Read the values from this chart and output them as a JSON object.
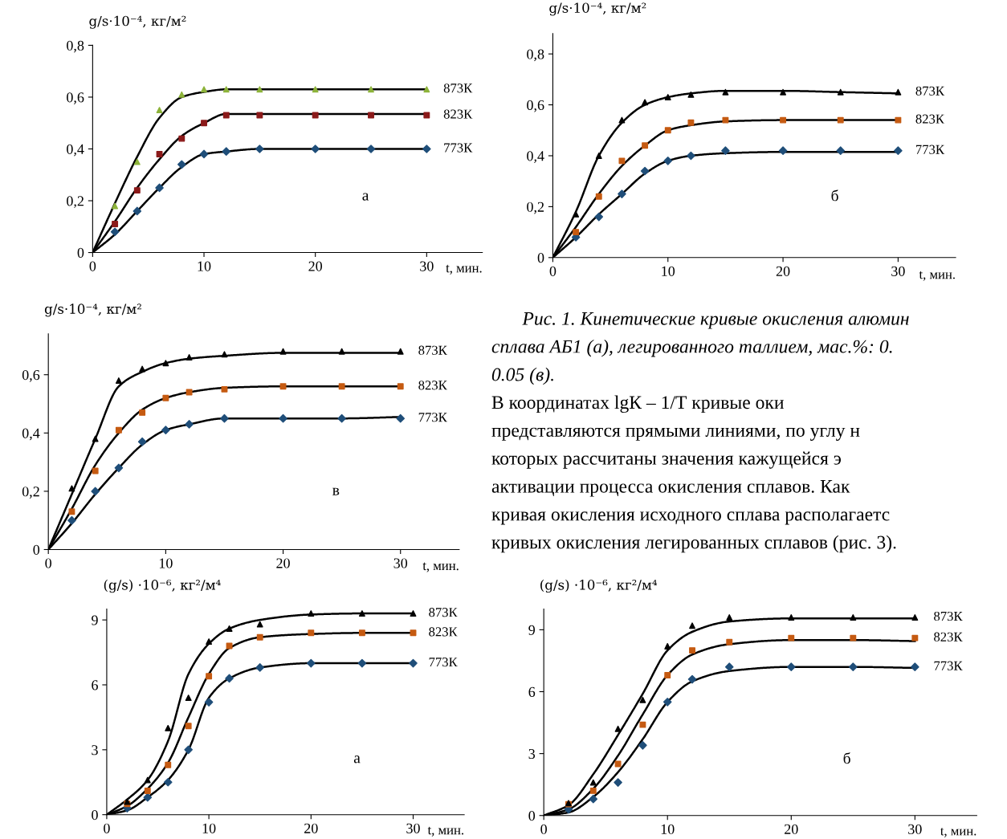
{
  "chart_data": [
    {
      "type": "scatter",
      "xlabel": "t, мин.",
      "ylabel": "g/s·10⁻⁴, кг/м²",
      "annotations": [
        "а"
      ],
      "xlim": [
        0,
        35
      ],
      "xticks": [
        0,
        10,
        20,
        30
      ],
      "ylim": [
        0,
        0.8
      ],
      "yticks": [
        0,
        {
          "value": 0.2,
          "label": "0,2"
        },
        {
          "value": 0.4,
          "label": "0,4"
        },
        {
          "value": 0.6,
          "label": "0,6"
        },
        {
          "value": 0.8,
          "label": "0,8"
        }
      ],
      "x": [
        0,
        2,
        4,
        6,
        8,
        10,
        12,
        15,
        20,
        25,
        30
      ],
      "series": [
        {
          "type": "line",
          "color": "#000000",
          "values": [
            0,
            0.19,
            0.37,
            0.52,
            0.6,
            0.62,
            0.63,
            0.63,
            0.63,
            0.63,
            0.63
          ]
        },
        {
          "type": "line",
          "color": "#000000",
          "values": [
            0,
            0.12,
            0.25,
            0.36,
            0.45,
            0.5,
            0.535,
            0.535,
            0.535,
            0.535,
            0.535
          ]
        },
        {
          "type": "line",
          "color": "#000000",
          "values": [
            0,
            0.07,
            0.16,
            0.25,
            0.33,
            0.38,
            0.39,
            0.4,
            0.4,
            0.4,
            0.4
          ]
        },
        {
          "type": "scatter",
          "name": "873К",
          "marker": "triangle",
          "color": "#8db33a",
          "x": [
            2,
            4,
            6,
            8,
            10,
            12,
            15,
            20,
            25,
            30
          ],
          "values": [
            0.18,
            0.35,
            0.55,
            0.61,
            0.63,
            0.63,
            0.63,
            0.63,
            0.63,
            0.63
          ]
        },
        {
          "type": "scatter",
          "name": "823К",
          "marker": "square",
          "color": "#8b1a1a",
          "x": [
            2,
            4,
            6,
            8,
            10,
            12,
            15,
            20,
            25,
            30
          ],
          "values": [
            0.11,
            0.24,
            0.38,
            0.44,
            0.5,
            0.53,
            0.53,
            0.53,
            0.53,
            0.53
          ]
        },
        {
          "type": "scatter",
          "name": "773К",
          "marker": "diamond",
          "color": "#1f4e79",
          "x": [
            2,
            4,
            6,
            8,
            10,
            12,
            15,
            20,
            25,
            30
          ],
          "values": [
            0.08,
            0.16,
            0.25,
            0.34,
            0.38,
            0.39,
            0.4,
            0.4,
            0.4,
            0.4
          ]
        }
      ]
    },
    {
      "type": "scatter",
      "xlabel": "t, мин.",
      "ylabel": "g/s·10⁻⁴, кг/м²",
      "annotations": [
        "б"
      ],
      "xlim": [
        0,
        35
      ],
      "xticks": [
        0,
        10,
        20,
        30
      ],
      "ylim": [
        0,
        0.88
      ],
      "yticks": [
        0,
        {
          "value": 0.2,
          "label": "0,2"
        },
        {
          "value": 0.4,
          "label": "0,4"
        },
        {
          "value": 0.6,
          "label": "0,6"
        },
        {
          "value": 0.8,
          "label": "0,8"
        }
      ],
      "x": [
        0,
        2,
        4,
        6,
        8,
        10,
        12,
        15,
        20,
        25,
        30
      ],
      "series": [
        {
          "type": "line",
          "color": "#000000",
          "values": [
            0,
            0.18,
            0.4,
            0.53,
            0.6,
            0.63,
            0.645,
            0.655,
            0.655,
            0.65,
            0.645
          ]
        },
        {
          "type": "line",
          "color": "#000000",
          "values": [
            0,
            0.12,
            0.25,
            0.36,
            0.44,
            0.5,
            0.52,
            0.535,
            0.54,
            0.54,
            0.54
          ]
        },
        {
          "type": "line",
          "color": "#000000",
          "values": [
            0,
            0.08,
            0.17,
            0.25,
            0.33,
            0.38,
            0.4,
            0.41,
            0.415,
            0.415,
            0.415
          ]
        },
        {
          "type": "scatter",
          "name": "873К",
          "marker": "triangle",
          "color": "#000000",
          "x": [
            2,
            4,
            6,
            8,
            10,
            12,
            15,
            20,
            25,
            30
          ],
          "values": [
            0.17,
            0.4,
            0.54,
            0.61,
            0.63,
            0.64,
            0.65,
            0.65,
            0.65,
            0.65
          ]
        },
        {
          "type": "scatter",
          "name": "823К",
          "marker": "square",
          "color": "#c55a11",
          "x": [
            2,
            4,
            6,
            8,
            10,
            12,
            15,
            20,
            25,
            30
          ],
          "values": [
            0.1,
            0.24,
            0.38,
            0.44,
            0.5,
            0.53,
            0.54,
            0.54,
            0.54,
            0.54
          ]
        },
        {
          "type": "scatter",
          "name": "773К",
          "marker": "diamond",
          "color": "#1f4e79",
          "x": [
            2,
            4,
            6,
            8,
            10,
            12,
            15,
            20,
            25,
            30
          ],
          "values": [
            0.08,
            0.16,
            0.25,
            0.34,
            0.38,
            0.4,
            0.42,
            0.42,
            0.42,
            0.42
          ]
        }
      ]
    },
    {
      "type": "scatter",
      "xlabel": "t, мин.",
      "ylabel": "g/s·10⁻⁴, кг/м²",
      "annotations": [
        "в"
      ],
      "xlim": [
        0,
        35
      ],
      "xticks": [
        0,
        10,
        20,
        30
      ],
      "ylim": [
        0,
        0.74
      ],
      "yticks": [
        0,
        {
          "value": 0.2,
          "label": "0,2"
        },
        {
          "value": 0.4,
          "label": "0,4"
        },
        {
          "value": 0.6,
          "label": "0,6"
        }
      ],
      "x": [
        0,
        2,
        4,
        6,
        8,
        10,
        12,
        15,
        20,
        25,
        30
      ],
      "series": [
        {
          "type": "line",
          "color": "#000000",
          "values": [
            0,
            0.19,
            0.38,
            0.56,
            0.61,
            0.64,
            0.655,
            0.665,
            0.675,
            0.675,
            0.675
          ]
        },
        {
          "type": "line",
          "color": "#000000",
          "values": [
            0,
            0.14,
            0.29,
            0.4,
            0.48,
            0.52,
            0.54,
            0.555,
            0.56,
            0.56,
            0.56
          ]
        },
        {
          "type": "line",
          "color": "#000000",
          "values": [
            0,
            0.09,
            0.19,
            0.28,
            0.36,
            0.41,
            0.43,
            0.45,
            0.45,
            0.45,
            0.455
          ]
        },
        {
          "type": "scatter",
          "name": "873К",
          "marker": "triangle",
          "color": "#000000",
          "x": [
            2,
            4,
            6,
            8,
            10,
            12,
            15,
            20,
            25,
            30
          ],
          "values": [
            0.21,
            0.38,
            0.58,
            0.62,
            0.64,
            0.66,
            0.67,
            0.68,
            0.68,
            0.68
          ]
        },
        {
          "type": "scatter",
          "name": "823К",
          "marker": "square",
          "color": "#c55a11",
          "x": [
            2,
            4,
            6,
            8,
            10,
            12,
            15,
            20,
            25,
            30
          ],
          "values": [
            0.13,
            0.27,
            0.41,
            0.47,
            0.52,
            0.54,
            0.55,
            0.56,
            0.56,
            0.56
          ]
        },
        {
          "type": "scatter",
          "name": "773К",
          "marker": "diamond",
          "color": "#1f4e79",
          "x": [
            2,
            4,
            6,
            8,
            10,
            12,
            15,
            20,
            25,
            30
          ],
          "values": [
            0.1,
            0.2,
            0.28,
            0.37,
            0.41,
            0.43,
            0.45,
            0.45,
            0.45,
            0.45
          ]
        }
      ]
    },
    {
      "type": "other",
      "annotations": [
        "Рис. 1. Кинетические кривые окисления алюмин",
        "сплава АБ1 (а), легированного таллием, мас.%: 0.",
        "0.05 (в).",
        "В координатах lgК – 1/Т кривые оки",
        "представляются прямыми линиями, по углу н",
        "которых рассчитаны значения кажущейся э",
        "активации процесса окисления сплавов. Как",
        "кривая окисления исходного сплава располагаетс",
        "кривых окисления легированных сплавов (рис. 3)."
      ]
    },
    {
      "type": "scatter",
      "xlabel": "t, мин.",
      "ylabel": "(g/s) ·10⁻⁶, кг²/м⁴",
      "annotations": [
        "а"
      ],
      "xlim": [
        0,
        35
      ],
      "xticks": [
        0,
        10,
        20,
        30
      ],
      "ylim": [
        0,
        9.5
      ],
      "yticks": [
        0,
        3,
        6,
        9
      ],
      "x": [
        0,
        2,
        4,
        6,
        8,
        10,
        12,
        15,
        20,
        25,
        30
      ],
      "series": [
        {
          "type": "line",
          "color": "#000000",
          "values": [
            0,
            0.7,
            1.6,
            3.4,
            6.5,
            7.9,
            8.6,
            9.0,
            9.25,
            9.3,
            9.3
          ]
        },
        {
          "type": "line",
          "color": "#000000",
          "values": [
            0,
            0.4,
            1.2,
            2.4,
            4.5,
            6.5,
            7.7,
            8.2,
            8.35,
            8.4,
            8.4
          ]
        },
        {
          "type": "line",
          "color": "#000000",
          "values": [
            0,
            0.2,
            0.8,
            1.6,
            3.0,
            5.4,
            6.3,
            6.8,
            7.0,
            7.0,
            7.0
          ]
        },
        {
          "type": "scatter",
          "name": "873К",
          "marker": "triangle",
          "color": "#000000",
          "x": [
            2,
            4,
            6,
            8,
            10,
            12,
            15,
            20,
            25,
            30
          ],
          "values": [
            0.6,
            1.6,
            4.0,
            5.4,
            8.0,
            8.6,
            8.8,
            9.3,
            9.3,
            9.3
          ]
        },
        {
          "type": "scatter",
          "name": "823К",
          "marker": "square",
          "color": "#c55a11",
          "x": [
            2,
            4,
            6,
            8,
            10,
            12,
            15,
            20,
            25,
            30
          ],
          "values": [
            0.5,
            1.1,
            2.3,
            4.1,
            6.4,
            7.8,
            8.2,
            8.4,
            8.4,
            8.4
          ]
        },
        {
          "type": "scatter",
          "name": "773К",
          "marker": "diamond",
          "color": "#1f4e79",
          "x": [
            2,
            4,
            6,
            8,
            10,
            12,
            15,
            20,
            25,
            30
          ],
          "values": [
            0.3,
            0.8,
            1.5,
            3.0,
            5.2,
            6.3,
            6.8,
            7.0,
            7.0,
            7.0
          ]
        }
      ]
    },
    {
      "type": "scatter",
      "xlabel": "t, мин.",
      "ylabel": "(g/s) ·10⁻⁶, кг²/м⁴",
      "annotations": [
        "б"
      ],
      "xlim": [
        0,
        35
      ],
      "xticks": [
        0,
        10,
        20,
        30
      ],
      "ylim": [
        0,
        10
      ],
      "yticks": [
        0,
        3,
        6,
        9
      ],
      "x": [
        0,
        2,
        4,
        6,
        8,
        10,
        12,
        15,
        20,
        25,
        30
      ],
      "series": [
        {
          "type": "line",
          "color": "#000000",
          "values": [
            0,
            0.5,
            2.0,
            3.9,
            5.9,
            8.0,
            8.9,
            9.4,
            9.55,
            9.55,
            9.55
          ]
        },
        {
          "type": "line",
          "color": "#000000",
          "values": [
            0,
            0.3,
            1.3,
            2.9,
            4.9,
            6.8,
            7.8,
            8.3,
            8.5,
            8.5,
            8.45
          ]
        },
        {
          "type": "line",
          "color": "#000000",
          "values": [
            0,
            0.15,
            0.9,
            2.1,
            3.7,
            5.5,
            6.5,
            7.0,
            7.2,
            7.2,
            7.15
          ]
        },
        {
          "type": "scatter",
          "name": "873К",
          "marker": "triangle",
          "color": "#000000",
          "x": [
            2,
            4,
            6,
            8,
            10,
            12,
            15,
            20,
            25,
            30
          ],
          "values": [
            0.6,
            1.6,
            4.2,
            5.6,
            8.2,
            9.2,
            9.6,
            9.6,
            9.6,
            9.6
          ]
        },
        {
          "type": "scatter",
          "name": "823К",
          "marker": "square",
          "color": "#c55a11",
          "x": [
            2,
            4,
            6,
            8,
            10,
            12,
            15,
            20,
            25,
            30
          ],
          "values": [
            0.55,
            1.2,
            2.5,
            4.4,
            6.8,
            8.0,
            8.4,
            8.6,
            8.6,
            8.6
          ]
        },
        {
          "type": "scatter",
          "name": "773К",
          "marker": "diamond",
          "color": "#1f4e79",
          "x": [
            2,
            4,
            6,
            8,
            10,
            12,
            15,
            20,
            25,
            30
          ],
          "values": [
            0.3,
            0.8,
            1.6,
            3.4,
            5.5,
            6.6,
            7.2,
            7.2,
            7.2,
            7.2
          ]
        }
      ]
    }
  ]
}
